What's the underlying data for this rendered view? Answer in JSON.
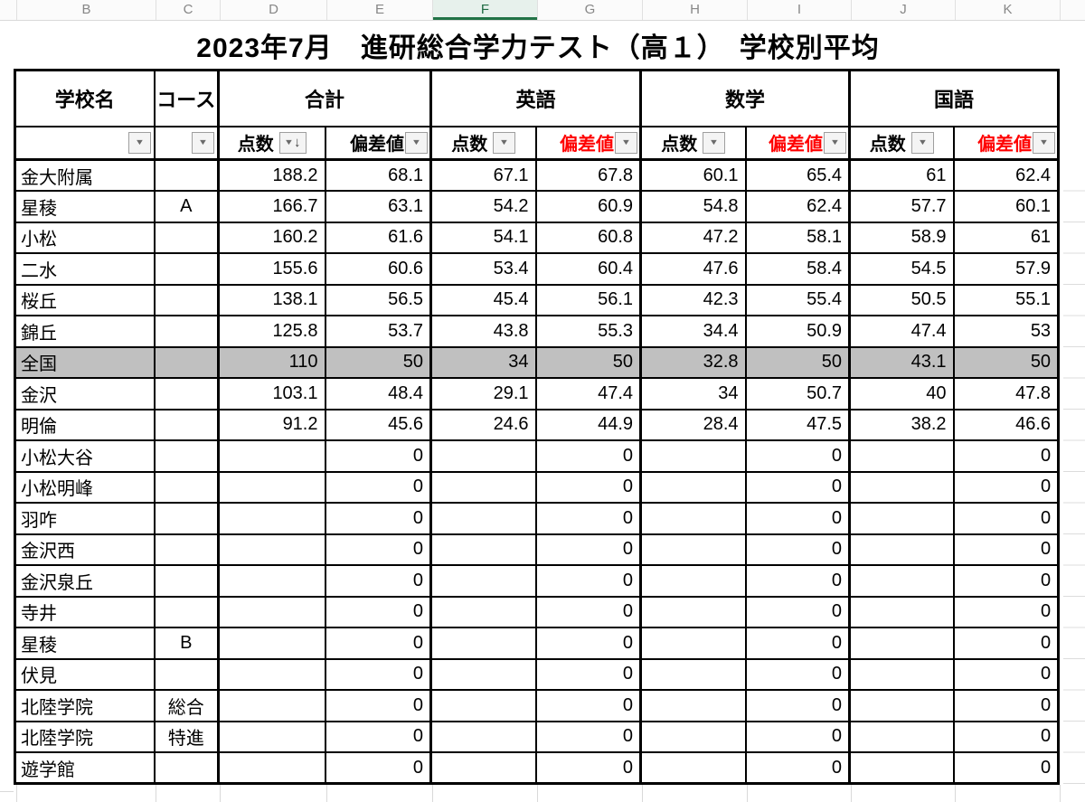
{
  "sheet_chrome": {
    "column_letters": [
      "B",
      "C",
      "D",
      "E",
      "F",
      "G",
      "H",
      "I",
      "J",
      "K"
    ],
    "selected_letter": "F"
  },
  "title": "2023年7月　進研総合学力テスト（高１）　学校別平均",
  "table": {
    "header_school": "学校名",
    "header_course": "コース",
    "groups": [
      {
        "label": "合計",
        "dev_red": false,
        "score_sorted_desc": true
      },
      {
        "label": "英語",
        "dev_red": true,
        "score_sorted_desc": false
      },
      {
        "label": "数学",
        "dev_red": true,
        "score_sorted_desc": false
      },
      {
        "label": "国語",
        "dev_red": true,
        "score_sorted_desc": false
      }
    ],
    "score_label": "点数",
    "dev_label": "偏差値",
    "rows": [
      {
        "school": "金大附属",
        "course": "",
        "values": [
          "188.2",
          "68.1",
          "67.1",
          "67.8",
          "60.1",
          "65.4",
          "61",
          "62.4"
        ],
        "highlighted": false
      },
      {
        "school": "星稜",
        "course": "A",
        "values": [
          "166.7",
          "63.1",
          "54.2",
          "60.9",
          "54.8",
          "62.4",
          "57.7",
          "60.1"
        ],
        "highlighted": false
      },
      {
        "school": "小松",
        "course": "",
        "values": [
          "160.2",
          "61.6",
          "54.1",
          "60.8",
          "47.2",
          "58.1",
          "58.9",
          "61"
        ],
        "highlighted": false
      },
      {
        "school": "二水",
        "course": "",
        "values": [
          "155.6",
          "60.6",
          "53.4",
          "60.4",
          "47.6",
          "58.4",
          "54.5",
          "57.9"
        ],
        "highlighted": false
      },
      {
        "school": "桜丘",
        "course": "",
        "values": [
          "138.1",
          "56.5",
          "45.4",
          "56.1",
          "42.3",
          "55.4",
          "50.5",
          "55.1"
        ],
        "highlighted": false
      },
      {
        "school": "錦丘",
        "course": "",
        "values": [
          "125.8",
          "53.7",
          "43.8",
          "55.3",
          "34.4",
          "50.9",
          "47.4",
          "53"
        ],
        "highlighted": false
      },
      {
        "school": "全国",
        "course": "",
        "values": [
          "110",
          "50",
          "34",
          "50",
          "32.8",
          "50",
          "43.1",
          "50"
        ],
        "highlighted": true
      },
      {
        "school": "金沢",
        "course": "",
        "values": [
          "103.1",
          "48.4",
          "29.1",
          "47.4",
          "34",
          "50.7",
          "40",
          "47.8"
        ],
        "highlighted": false
      },
      {
        "school": "明倫",
        "course": "",
        "values": [
          "91.2",
          "45.6",
          "24.6",
          "44.9",
          "28.4",
          "47.5",
          "38.2",
          "46.6"
        ],
        "highlighted": false
      },
      {
        "school": "小松大谷",
        "course": "",
        "values": [
          "",
          "0",
          "",
          "0",
          "",
          "0",
          "",
          "0"
        ],
        "highlighted": false
      },
      {
        "school": "小松明峰",
        "course": "",
        "values": [
          "",
          "0",
          "",
          "0",
          "",
          "0",
          "",
          "0"
        ],
        "highlighted": false
      },
      {
        "school": "羽咋",
        "course": "",
        "values": [
          "",
          "0",
          "",
          "0",
          "",
          "0",
          "",
          "0"
        ],
        "highlighted": false
      },
      {
        "school": "金沢西",
        "course": "",
        "values": [
          "",
          "0",
          "",
          "0",
          "",
          "0",
          "",
          "0"
        ],
        "highlighted": false
      },
      {
        "school": "金沢泉丘",
        "course": "",
        "values": [
          "",
          "0",
          "",
          "0",
          "",
          "0",
          "",
          "0"
        ],
        "highlighted": false
      },
      {
        "school": "寺井",
        "course": "",
        "values": [
          "",
          "0",
          "",
          "0",
          "",
          "0",
          "",
          "0"
        ],
        "highlighted": false
      },
      {
        "school": "星稜",
        "course": "B",
        "values": [
          "",
          "0",
          "",
          "0",
          "",
          "0",
          "",
          "0"
        ],
        "highlighted": false
      },
      {
        "school": "伏見",
        "course": "",
        "values": [
          "",
          "0",
          "",
          "0",
          "",
          "0",
          "",
          "0"
        ],
        "highlighted": false
      },
      {
        "school": "北陸学院",
        "course": "総合",
        "values": [
          "",
          "0",
          "",
          "0",
          "",
          "0",
          "",
          "0"
        ],
        "highlighted": false
      },
      {
        "school": "北陸学院",
        "course": "特進",
        "values": [
          "",
          "0",
          "",
          "0",
          "",
          "0",
          "",
          "0"
        ],
        "highlighted": false
      },
      {
        "school": "遊学館",
        "course": "",
        "values": [
          "",
          "0",
          "",
          "0",
          "",
          "0",
          "",
          "0"
        ],
        "highlighted": false
      }
    ]
  },
  "icons": {
    "filter_dropdown": "▼",
    "sort_descending": "↓"
  },
  "colors": {
    "dev_header_red": "#FF0000",
    "highlight_row_gray": "#C0C0C0",
    "selected_column_green": "#217346",
    "grid_border_black": "#000000"
  }
}
